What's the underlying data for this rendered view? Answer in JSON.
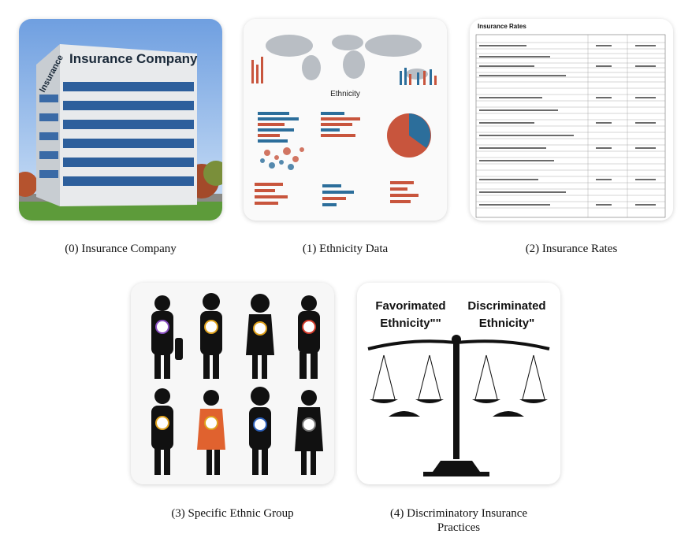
{
  "panels": [
    {
      "caption": "(0) Insurance Company",
      "sign": "Insurance Company",
      "side_sign": "Insurance"
    },
    {
      "caption": "(1) Ethnicity Data",
      "heading": "Ethnicity"
    },
    {
      "caption": "(2) Insurance Rates",
      "heading": "Insurance Rates"
    },
    {
      "caption": "(3) Specific Ethnic Group"
    },
    {
      "caption": "(4) Discriminatory Insurance Practices",
      "left_title_1": "Favorimated",
      "left_title_2": "Ethnicity\"\"",
      "right_title_1": "Discriminated",
      "right_title_2": "Ethnicity\""
    }
  ]
}
